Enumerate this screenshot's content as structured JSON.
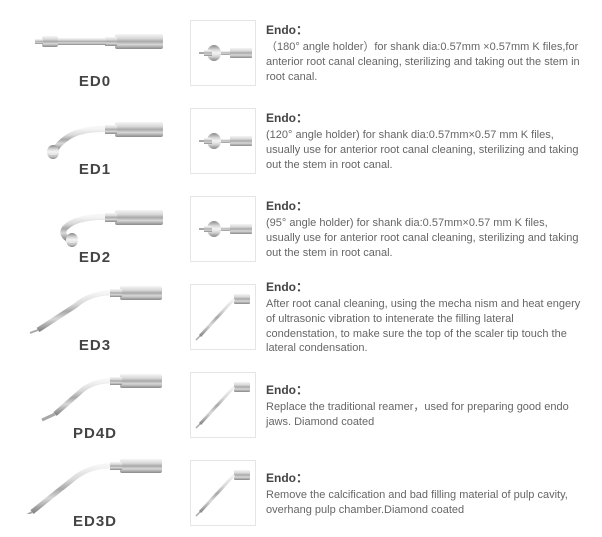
{
  "rows": [
    {
      "label": "ED0",
      "title": "Endo：",
      "text": "（180° angle holder）for shank dia:0.57mm ×0.57mm K files,for anterior root canal cleaning, sterilizing and taking out the stem in root canal.",
      "tool": "ed0",
      "thumb": "tip0"
    },
    {
      "label": "ED1",
      "title": "Endo：",
      "text": "(120° angle holder) for shank dia:0.57mm×0.57 mm K files, usually use for anterior root canal cleaning, sterilizing and taking out the stem in  root canal.",
      "tool": "ed1",
      "thumb": "tip1"
    },
    {
      "label": "ED2",
      "title": "Endo：",
      "text": "(95° angle holder) for shank dia:0.57mm×0.57 mm K files, usually use for anterior root canal cleaning, sterilizing and taking out the stem in root canal.",
      "tool": "ed2",
      "thumb": "tip2"
    },
    {
      "label": "ED3",
      "title": "Endo：",
      "text": "After root canal cleaning, using the mecha nism and heat engery of ultrasonic vibration to intenerate the filling lateral condenstation, to make sure the top of the scaler tip touch the lateral condensation.",
      "tool": "ed3",
      "thumb": "needle"
    },
    {
      "label": "PD4D",
      "title": "Endo：",
      "text": "Replace the traditional reamer，used for preparing good endo jaws. Diamond coated",
      "tool": "pd4d",
      "thumb": "needle"
    },
    {
      "label": "ED3D",
      "title": "Endo：",
      "text": "Remove the calcification and bad filling material of pulp cavity, overhang pulp chamber.Diamond coated",
      "tool": "ed3d",
      "thumb": "needle"
    }
  ],
  "colors": {
    "metal1": "#d8d8d8",
    "metal2": "#a8a8a8",
    "metal3": "#888",
    "shine": "#f5f5f5",
    "dark": "#555"
  }
}
